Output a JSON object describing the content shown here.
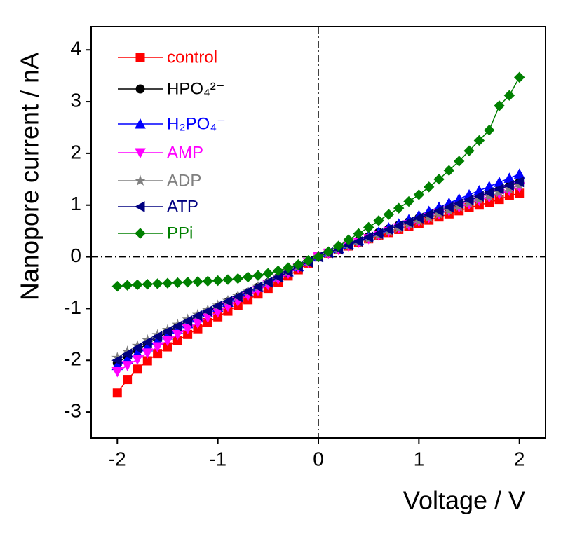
{
  "chart_data": {
    "type": "line",
    "xlabel": "Voltage / V",
    "ylabel": "Nanopore current / nA",
    "x": [
      -2,
      -1.9,
      -1.8,
      -1.7,
      -1.6,
      -1.5,
      -1.4,
      -1.3,
      -1.2,
      -1.1,
      -1,
      -0.9,
      -0.8,
      -0.7,
      -0.6,
      -0.5,
      -0.4,
      -0.3,
      -0.2,
      -0.1,
      0,
      0.1,
      0.2,
      0.3,
      0.4,
      0.5,
      0.6,
      0.7,
      0.8,
      0.9,
      1,
      1.1,
      1.2,
      1.3,
      1.4,
      1.5,
      1.6,
      1.7,
      1.8,
      1.9,
      2
    ],
    "series": [
      {
        "name": "control",
        "color": "#ff0000",
        "marker": "square",
        "values": [
          -2.63,
          -2.37,
          -2.17,
          -2.01,
          -1.87,
          -1.74,
          -1.62,
          -1.5,
          -1.39,
          -1.27,
          -1.16,
          -1.05,
          -0.94,
          -0.83,
          -0.72,
          -0.61,
          -0.49,
          -0.37,
          -0.25,
          -0.12,
          0,
          0.07,
          0.14,
          0.21,
          0.28,
          0.35,
          0.41,
          0.47,
          0.53,
          0.59,
          0.65,
          0.71,
          0.77,
          0.83,
          0.89,
          0.95,
          1,
          1.05,
          1.11,
          1.18,
          1.23
        ]
      },
      {
        "name": "HPO₄²⁻",
        "color": "#000000",
        "marker": "circle",
        "values": [
          -2.05,
          -1.92,
          -1.8,
          -1.68,
          -1.57,
          -1.46,
          -1.36,
          -1.26,
          -1.16,
          -1.06,
          -0.97,
          -0.87,
          -0.78,
          -0.69,
          -0.59,
          -0.5,
          -0.4,
          -0.3,
          -0.2,
          -0.1,
          0,
          0.08,
          0.16,
          0.24,
          0.32,
          0.39,
          0.47,
          0.54,
          0.61,
          0.68,
          0.75,
          0.81,
          0.88,
          0.95,
          1.02,
          1.09,
          1.16,
          1.23,
          1.3,
          1.37,
          1.44
        ]
      },
      {
        "name": "H₂PO₄⁻",
        "color": "#0000ff",
        "marker": "triangle-up",
        "values": [
          -2.1,
          -1.98,
          -1.86,
          -1.74,
          -1.62,
          -1.51,
          -1.4,
          -1.29,
          -1.18,
          -1.08,
          -0.98,
          -0.88,
          -0.78,
          -0.68,
          -0.59,
          -0.49,
          -0.39,
          -0.29,
          -0.19,
          -0.09,
          0,
          0.08,
          0.16,
          0.24,
          0.32,
          0.4,
          0.48,
          0.56,
          0.64,
          0.72,
          0.8,
          0.88,
          0.96,
          1.04,
          1.12,
          1.2,
          1.28,
          1.36,
          1.44,
          1.52,
          1.6
        ]
      },
      {
        "name": "AMP",
        "color": "#ff00ff",
        "marker": "triangle-down",
        "values": [
          -2.22,
          -2.1,
          -1.98,
          -1.86,
          -1.74,
          -1.62,
          -1.5,
          -1.39,
          -1.28,
          -1.17,
          -1.07,
          -0.96,
          -0.86,
          -0.75,
          -0.65,
          -0.54,
          -0.43,
          -0.32,
          -0.21,
          -0.11,
          0,
          0.07,
          0.14,
          0.21,
          0.28,
          0.35,
          0.42,
          0.49,
          0.56,
          0.62,
          0.69,
          0.76,
          0.83,
          0.89,
          0.96,
          1.02,
          1.09,
          1.15,
          1.22,
          1.28,
          1.35
        ]
      },
      {
        "name": "ADP",
        "color": "#808080",
        "marker": "star",
        "values": [
          -1.95,
          -1.83,
          -1.72,
          -1.61,
          -1.51,
          -1.41,
          -1.31,
          -1.21,
          -1.12,
          -1.03,
          -0.94,
          -0.85,
          -0.76,
          -0.67,
          -0.58,
          -0.48,
          -0.39,
          -0.29,
          -0.19,
          -0.1,
          0,
          0.07,
          0.14,
          0.21,
          0.28,
          0.35,
          0.42,
          0.49,
          0.56,
          0.63,
          0.7,
          0.76,
          0.83,
          0.9,
          0.97,
          1.04,
          1.11,
          1.17,
          1.24,
          1.31,
          1.38
        ]
      },
      {
        "name": "ATP",
        "color": "#000080",
        "marker": "triangle-left",
        "values": [
          -2,
          -1.88,
          -1.76,
          -1.65,
          -1.54,
          -1.44,
          -1.34,
          -1.24,
          -1.14,
          -1.05,
          -0.95,
          -0.86,
          -0.77,
          -0.67,
          -0.58,
          -0.49,
          -0.39,
          -0.29,
          -0.19,
          -0.1,
          0,
          0.08,
          0.15,
          0.23,
          0.3,
          0.38,
          0.45,
          0.53,
          0.6,
          0.67,
          0.75,
          0.82,
          0.89,
          0.96,
          1.03,
          1.1,
          1.17,
          1.24,
          1.31,
          1.38,
          1.45
        ]
      },
      {
        "name": "PPi",
        "color": "#008000",
        "marker": "diamond",
        "values": [
          -0.57,
          -0.55,
          -0.54,
          -0.53,
          -0.52,
          -0.51,
          -0.5,
          -0.49,
          -0.48,
          -0.47,
          -0.46,
          -0.44,
          -0.42,
          -0.39,
          -0.36,
          -0.32,
          -0.27,
          -0.21,
          -0.15,
          -0.07,
          0,
          0.1,
          0.21,
          0.33,
          0.45,
          0.57,
          0.7,
          0.82,
          0.94,
          1.07,
          1.2,
          1.35,
          1.5,
          1.67,
          1.85,
          2.05,
          2.25,
          2.45,
          2.92,
          3.12,
          3.47
        ]
      }
    ],
    "xlim": [
      -2.26,
      2.26
    ],
    "xticks": [
      -2,
      -1,
      0,
      1,
      2
    ],
    "ylim": [
      -3.5,
      4.45
    ],
    "yticks": [
      -3,
      -2,
      -1,
      0,
      1,
      2,
      3,
      4
    ],
    "zero_lines": true,
    "legend": "upper left"
  }
}
